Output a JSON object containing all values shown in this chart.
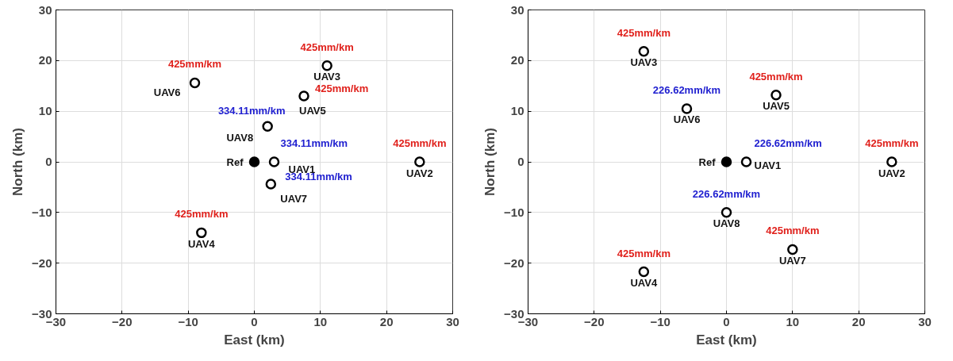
{
  "chart_data": [
    {
      "type": "scatter",
      "xlabel": "East (km)",
      "ylabel": "North (km)",
      "xlim": [
        -30,
        30
      ],
      "ylim": [
        -30,
        30
      ],
      "xticks": [
        -30,
        -20,
        -10,
        0,
        10,
        20,
        30
      ],
      "yticks": [
        -30,
        -20,
        -10,
        0,
        10,
        20,
        30
      ],
      "grid": true,
      "legend": false,
      "marker": "circle",
      "series": [
        {
          "name": "Ref",
          "color": "#000000",
          "x": [
            0
          ],
          "values": [
            0
          ]
        },
        {
          "name": "UAV1",
          "color": "#000000",
          "x": [
            3
          ],
          "values": [
            0
          ]
        },
        {
          "name": "UAV2",
          "color": "#000000",
          "x": [
            25
          ],
          "values": [
            0
          ]
        },
        {
          "name": "UAV3",
          "color": "#000000",
          "x": [
            11
          ],
          "values": [
            19
          ]
        },
        {
          "name": "UAV4",
          "color": "#000000",
          "x": [
            -8
          ],
          "values": [
            -14
          ]
        },
        {
          "name": "UAV5",
          "color": "#000000",
          "x": [
            7.5
          ],
          "values": [
            13
          ]
        },
        {
          "name": "UAV6",
          "color": "#000000",
          "x": [
            -9
          ],
          "values": [
            15.6
          ]
        },
        {
          "name": "UAV7",
          "color": "#000000",
          "x": [
            2.5
          ],
          "values": [
            -4.4
          ]
        },
        {
          "name": "UAV8",
          "color": "#000000",
          "x": [
            2
          ],
          "values": [
            7
          ]
        }
      ],
      "annotations": [
        {
          "text": "334.11mm/km",
          "x": 3,
          "y": 0
        },
        {
          "text": "425mm/km",
          "x": 25,
          "y": 0
        },
        {
          "text": "425mm/km",
          "x": 11,
          "y": 19
        },
        {
          "text": "425mm/km",
          "x": -8,
          "y": -14
        },
        {
          "text": "425mm/km",
          "x": 7.5,
          "y": 13
        },
        {
          "text": "425mm/km",
          "x": -9,
          "y": 15.6
        },
        {
          "text": "334.11mm/km",
          "x": 2.5,
          "y": -4.4
        },
        {
          "text": "334.11mm/km",
          "x": 2,
          "y": 7
        }
      ]
    },
    {
      "type": "scatter",
      "xlabel": "East (km)",
      "ylabel": "North (km)",
      "xlim": [
        -30,
        30
      ],
      "ylim": [
        -30,
        30
      ],
      "xticks": [
        -30,
        -20,
        -10,
        0,
        10,
        20,
        30
      ],
      "yticks": [
        -30,
        -20,
        -10,
        0,
        10,
        20,
        30
      ],
      "grid": true,
      "legend": false,
      "marker": "circle",
      "series": [
        {
          "name": "Ref",
          "color": "#000000",
          "x": [
            0
          ],
          "values": [
            0
          ]
        },
        {
          "name": "UAV1",
          "color": "#000000",
          "x": [
            3
          ],
          "values": [
            0
          ]
        },
        {
          "name": "UAV2",
          "color": "#000000",
          "x": [
            25
          ],
          "values": [
            0
          ]
        },
        {
          "name": "UAV3",
          "color": "#000000",
          "x": [
            -12.5
          ],
          "values": [
            21.8
          ]
        },
        {
          "name": "UAV4",
          "color": "#000000",
          "x": [
            -12.5
          ],
          "values": [
            -21.7
          ]
        },
        {
          "name": "UAV5",
          "color": "#000000",
          "x": [
            7.5
          ],
          "values": [
            13.2
          ]
        },
        {
          "name": "UAV6",
          "color": "#000000",
          "x": [
            -6
          ],
          "values": [
            10.5
          ]
        },
        {
          "name": "UAV7",
          "color": "#000000",
          "x": [
            10
          ],
          "values": [
            -17.3
          ]
        },
        {
          "name": "UAV8",
          "color": "#000000",
          "x": [
            0
          ],
          "values": [
            -10
          ]
        }
      ],
      "annotations": [
        {
          "text": "226.62mm/km",
          "x": 3,
          "y": 0
        },
        {
          "text": "425mm/km",
          "x": 25,
          "y": 0
        },
        {
          "text": "425mm/km",
          "x": -12.5,
          "y": 21.8
        },
        {
          "text": "425mm/km",
          "x": -12.5,
          "y": -21.7
        },
        {
          "text": "425mm/km",
          "x": 7.5,
          "y": 13.2
        },
        {
          "text": "226.62mm/km",
          "x": -6,
          "y": 10.5
        },
        {
          "text": "425mm/km",
          "x": 10,
          "y": -17.3
        },
        {
          "text": "226.62mm/km",
          "x": 0,
          "y": -10
        }
      ]
    }
  ]
}
